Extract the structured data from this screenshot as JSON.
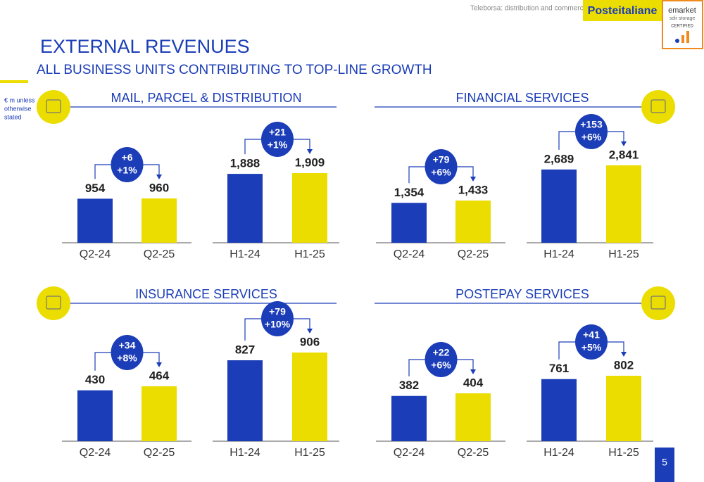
{
  "header": {
    "watermark": "Teleborsa: distribution and commercial use strictly prohibited",
    "logo": "Posteitaliane",
    "badge": [
      "emarket",
      "sdir storage",
      "CERTIFIED"
    ],
    "title": "EXTERNAL REVENUES",
    "subtitle": "ALL BUSINESS UNITS CONTRIBUTING TO TOP-LINE GROWTH",
    "unit_note": [
      "€ m unless",
      "otherwise",
      "stated"
    ],
    "page_number": "5"
  },
  "sections": [
    {
      "title": "MAIL, PARCEL & DISTRIBUTION"
    },
    {
      "title": "FINANCIAL SERVICES"
    },
    {
      "title": "INSURANCE SERVICES"
    },
    {
      "title": "POSTEPAY SERVICES"
    }
  ],
  "chart_data": [
    {
      "type": "bar",
      "categories": [
        "Q2-24",
        "Q2-25"
      ],
      "values": [
        954,
        960
      ],
      "colors": [
        "#1b3db7",
        "#ebdd00"
      ],
      "annotation": [
        "+6",
        "+1%"
      ]
    },
    {
      "type": "bar",
      "categories": [
        "H1-24",
        "H1-25"
      ],
      "values": [
        1888,
        1909
      ],
      "value_labels": [
        "1,888",
        "1,909"
      ],
      "colors": [
        "#1b3db7",
        "#ebdd00"
      ],
      "annotation": [
        "+21",
        "+1%"
      ]
    },
    {
      "type": "bar",
      "categories": [
        "Q2-24",
        "Q2-25"
      ],
      "values": [
        1354,
        1433
      ],
      "value_labels": [
        "1,354",
        "1,433"
      ],
      "colors": [
        "#1b3db7",
        "#ebdd00"
      ],
      "annotation": [
        "+79",
        "+6%"
      ]
    },
    {
      "type": "bar",
      "categories": [
        "H1-24",
        "H1-25"
      ],
      "values": [
        2689,
        2841
      ],
      "value_labels": [
        "2,689",
        "2,841"
      ],
      "colors": [
        "#1b3db7",
        "#ebdd00"
      ],
      "annotation": [
        "+153",
        "+6%"
      ]
    },
    {
      "type": "bar",
      "categories": [
        "Q2-24",
        "Q2-25"
      ],
      "values": [
        430,
        464
      ],
      "colors": [
        "#1b3db7",
        "#ebdd00"
      ],
      "annotation": [
        "+34",
        "+8%"
      ]
    },
    {
      "type": "bar",
      "categories": [
        "H1-24",
        "H1-25"
      ],
      "values": [
        827,
        906
      ],
      "colors": [
        "#1b3db7",
        "#ebdd00"
      ],
      "annotation": [
        "+79",
        "+10%"
      ]
    },
    {
      "type": "bar",
      "categories": [
        "Q2-24",
        "Q2-25"
      ],
      "values": [
        382,
        404
      ],
      "colors": [
        "#1b3db7",
        "#ebdd00"
      ],
      "annotation": [
        "+22",
        "+6%"
      ]
    },
    {
      "type": "bar",
      "categories": [
        "H1-24",
        "H1-25"
      ],
      "values": [
        761,
        802
      ],
      "colors": [
        "#1b3db7",
        "#ebdd00"
      ],
      "annotation": [
        "+41",
        "+5%"
      ]
    }
  ]
}
